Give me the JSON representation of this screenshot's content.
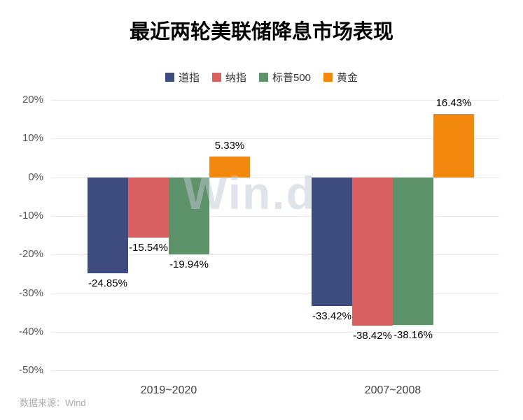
{
  "title": "最近两轮美联储降息市场表现",
  "watermark": "Win.d",
  "source": "数据来源：Wind",
  "chart_data": {
    "type": "bar",
    "title": "最近两轮美联储降息市场表现",
    "categories": [
      "2019~2020",
      "2007~2008"
    ],
    "series": [
      {
        "name": "道指",
        "color": "#3e4b7e",
        "values": [
          -24.85,
          -33.42
        ]
      },
      {
        "name": "纳指",
        "color": "#d96060",
        "values": [
          -15.54,
          -38.42
        ]
      },
      {
        "name": "标普500",
        "color": "#5e9268",
        "values": [
          -19.94,
          -38.16
        ]
      },
      {
        "name": "黄金",
        "color": "#f3880f",
        "values": [
          5.33,
          16.43
        ]
      }
    ],
    "value_labels": [
      [
        "-24.85%",
        "-15.54%",
        "-19.94%",
        "5.33%"
      ],
      [
        "-33.42%",
        "-38.42%",
        "-38.16%",
        "16.43%"
      ]
    ],
    "ylim": [
      -50,
      20
    ],
    "yticks": [
      20,
      10,
      0,
      -10,
      -20,
      -30,
      -40,
      -50
    ],
    "ytick_labels": [
      "20%",
      "10%",
      "0%",
      "-10%",
      "-20%",
      "-30%",
      "-40%",
      "-50%"
    ],
    "grid": true,
    "legend_position": "top"
  }
}
